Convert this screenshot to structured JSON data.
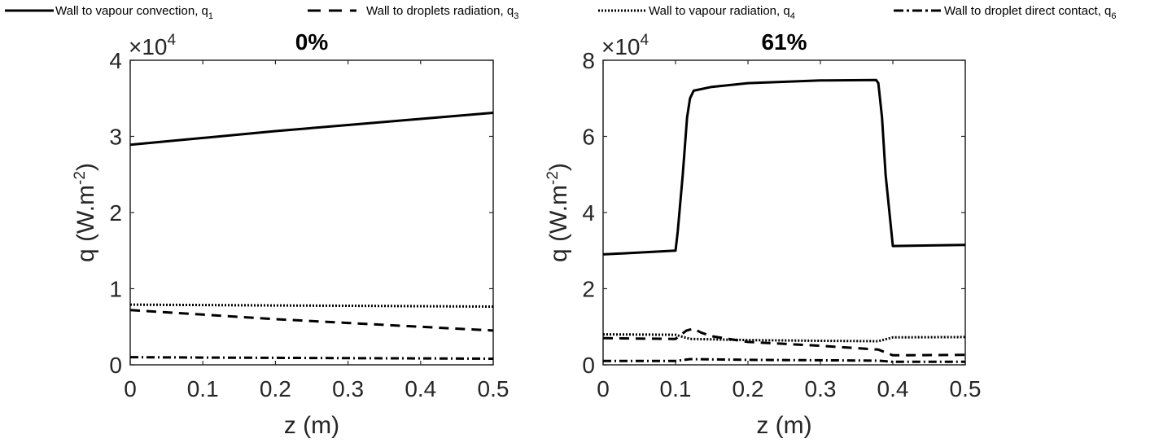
{
  "legend": [
    {
      "label": "Wall to vapour convection, q",
      "sub": "1",
      "style": "solid"
    },
    {
      "label": "Wall to droplets radiation, q",
      "sub": "3",
      "style": "dashed"
    },
    {
      "label": "Wall to vapour radiation, q",
      "sub": "4",
      "style": "dotted"
    },
    {
      "label": "Wall to droplet direct contact, q",
      "sub": "6",
      "style": "dashdot"
    }
  ],
  "chart_data": [
    {
      "type": "line",
      "title": "0%",
      "xlabel": "z (m)",
      "ylabel": "q (W.m",
      "ylabel_sup": "-2",
      "ylabel_close": ")",
      "scale_base": "×10",
      "scale_exp": "4",
      "xlim": [
        0,
        0.5
      ],
      "ylim": [
        0,
        40000
      ],
      "xticks": [
        0,
        0.1,
        0.2,
        0.3,
        0.4,
        0.5
      ],
      "xtick_labels": [
        "0",
        "0.1",
        "0.2",
        "0.3",
        "0.4",
        "0.5"
      ],
      "yticks": [
        0,
        10000,
        20000,
        30000,
        40000
      ],
      "ytick_labels": [
        "0",
        "1",
        "2",
        "3",
        "4"
      ],
      "series": [
        {
          "name": "Wall to vapour convection, q1",
          "style": "solid",
          "x": [
            0,
            0.1,
            0.2,
            0.3,
            0.4,
            0.5
          ],
          "y": [
            28900,
            29800,
            30700,
            31500,
            32300,
            33100
          ]
        },
        {
          "name": "Wall to droplets radiation, q3",
          "style": "dashed",
          "x": [
            0,
            0.1,
            0.2,
            0.3,
            0.4,
            0.5
          ],
          "y": [
            7200,
            6600,
            6000,
            5500,
            5000,
            4500
          ]
        },
        {
          "name": "Wall to vapour radiation, q4",
          "style": "dotted",
          "x": [
            0,
            0.1,
            0.2,
            0.3,
            0.4,
            0.5
          ],
          "y": [
            7900,
            7850,
            7800,
            7750,
            7700,
            7650
          ]
        },
        {
          "name": "Wall to droplet direct contact, q6",
          "style": "dashdot",
          "x": [
            0,
            0.1,
            0.2,
            0.3,
            0.4,
            0.5
          ],
          "y": [
            1000,
            950,
            920,
            880,
            850,
            800
          ]
        }
      ]
    },
    {
      "type": "line",
      "title": "61%",
      "xlabel": "z (m)",
      "ylabel": "q (W.m",
      "ylabel_sup": "-2",
      "ylabel_close": ")",
      "scale_base": "×10",
      "scale_exp": "4",
      "xlim": [
        0,
        0.5
      ],
      "ylim": [
        0,
        80000
      ],
      "xticks": [
        0,
        0.1,
        0.2,
        0.3,
        0.4,
        0.5
      ],
      "xtick_labels": [
        "0",
        "0.1",
        "0.2",
        "0.3",
        "0.4",
        "0.5"
      ],
      "yticks": [
        0,
        20000,
        40000,
        60000,
        80000
      ],
      "ytick_labels": [
        "0",
        "2",
        "4",
        "6",
        "8"
      ],
      "series": [
        {
          "name": "Wall to vapour convection, q1",
          "style": "solid",
          "x": [
            0,
            0.1,
            0.103,
            0.11,
            0.116,
            0.12,
            0.125,
            0.15,
            0.2,
            0.3,
            0.377,
            0.38,
            0.385,
            0.39,
            0.4,
            0.5
          ],
          "y": [
            29000,
            30000,
            35000,
            50000,
            65000,
            70000,
            72000,
            73000,
            74000,
            74700,
            74800,
            74000,
            65000,
            50000,
            31200,
            31500
          ]
        },
        {
          "name": "Wall to droplets radiation, q3",
          "style": "dashed",
          "x": [
            0,
            0.1,
            0.115,
            0.125,
            0.135,
            0.15,
            0.2,
            0.3,
            0.38,
            0.4,
            0.5
          ],
          "y": [
            7000,
            6800,
            9000,
            9500,
            8500,
            7500,
            6000,
            5000,
            4000,
            2500,
            2600
          ]
        },
        {
          "name": "Wall to vapour radiation, q4",
          "style": "dotted",
          "x": [
            0,
            0.1,
            0.12,
            0.2,
            0.3,
            0.38,
            0.4,
            0.5
          ],
          "y": [
            8000,
            7900,
            6800,
            6500,
            6300,
            6200,
            7200,
            7300
          ]
        },
        {
          "name": "Wall to droplet direct contact, q6",
          "style": "dashdot",
          "x": [
            0,
            0.1,
            0.12,
            0.2,
            0.3,
            0.38,
            0.4,
            0.5
          ],
          "y": [
            1000,
            1000,
            1500,
            1300,
            1200,
            1100,
            800,
            800
          ]
        }
      ]
    }
  ]
}
